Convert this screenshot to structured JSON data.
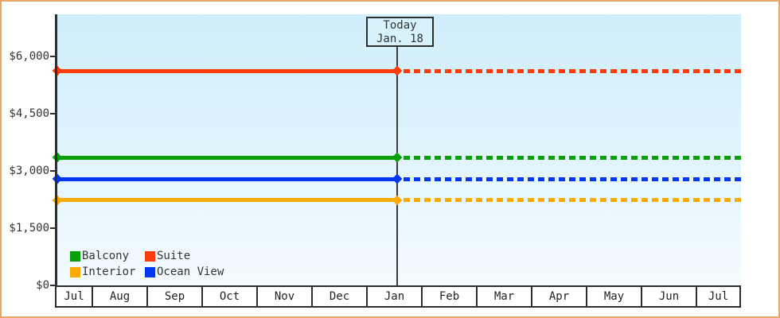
{
  "window": {
    "background": "#ffffff",
    "border_color": "#eba661"
  },
  "chart_data": {
    "type": "line",
    "title": "",
    "grid": false,
    "plot_background": [
      "#cfeefb",
      "#f4fbfe"
    ],
    "y_axis": {
      "tick_labels": [
        "$6,000",
        "$4,500",
        "$3,000",
        "$1,500",
        "$0"
      ],
      "tick_values": [
        6000,
        4500,
        3000,
        1500,
        0
      ],
      "range": [
        0,
        7100
      ]
    },
    "x_axis": {
      "tick_labels": [
        "Jul",
        "Aug",
        "Sep",
        "Oct",
        "Nov",
        "Dec",
        "Jan",
        "Feb",
        "Mar",
        "Apr",
        "May",
        "Jun",
        "Jul"
      ]
    },
    "today_marker": {
      "line1": "Today",
      "line2": "Jan. 18"
    },
    "series": [
      {
        "name": "Suite",
        "color": "#fa3c0a",
        "value": 5625
      },
      {
        "name": "Balcony",
        "color": "#0aa00a",
        "value": 3350
      },
      {
        "name": "Ocean View",
        "color": "#0337f0",
        "value": 2790
      },
      {
        "name": "Interior",
        "color": "#faaa05",
        "value": 2230
      }
    ],
    "series_style": {
      "past": "solid",
      "future": "dotted",
      "marker": "diamond"
    },
    "legend": {
      "position": "bottom-left",
      "items": [
        {
          "label": "Balcony",
          "color": "#0aa00a"
        },
        {
          "label": "Suite",
          "color": "#fa3c0a"
        },
        {
          "label": "Interior",
          "color": "#faaa05"
        },
        {
          "label": "Ocean View",
          "color": "#0337f0"
        }
      ]
    }
  }
}
